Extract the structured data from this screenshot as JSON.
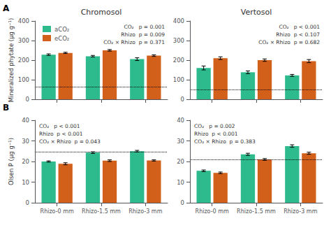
{
  "chart_data": [
    {
      "type": "bar",
      "title": "Chromosol",
      "panel_label": "A",
      "ylabel": "Mineralized phytate (μg g⁻¹)",
      "categories": [
        null,
        null,
        null
      ],
      "series": [
        {
          "name": "aCO₂",
          "color": "#2dba8c",
          "values": [
            228,
            220,
            205
          ],
          "errors": [
            4,
            4,
            7
          ]
        },
        {
          "name": "eCO₂",
          "color": "#d2601a",
          "values": [
            237,
            250,
            223
          ],
          "errors": [
            3,
            4,
            4
          ]
        }
      ],
      "hline": 65,
      "annotation": "CO₂   p = 0.001\nRhizo  p = 0.009\nCO₂ × Rhizo  p = 0.371",
      "ylim": [
        0,
        400
      ],
      "yticks": [
        0,
        100,
        200,
        300,
        400
      ],
      "grid": false,
      "legend": "upper left",
      "tick_labels": "y"
    },
    {
      "type": "bar",
      "title": "Vertosol",
      "categories": [
        null,
        null,
        null
      ],
      "series": [
        {
          "name": "aCO₂",
          "color": "#2dba8c",
          "values": [
            160,
            138,
            122
          ],
          "errors": [
            10,
            7,
            5
          ]
        },
        {
          "name": "eCO₂",
          "color": "#d2601a",
          "values": [
            210,
            200,
            195
          ],
          "errors": [
            7,
            6,
            8
          ]
        }
      ],
      "hline": 50,
      "annotation": "CO₂   p < 0.001\nRhizo  p < 0.107\nCO₂ × Rhizo  p = 0.682",
      "ylim": [
        0,
        400
      ],
      "yticks": [
        0,
        100,
        200,
        300,
        400
      ],
      "grid": false,
      "tick_labels": "y"
    },
    {
      "type": "bar",
      "panel_label": "B",
      "ylabel": "Olsen P (μg g⁻¹)",
      "categories": [
        "Rhizo-0 mm",
        "Rhizo-1.5 mm",
        "Rhizo-3 mm"
      ],
      "series": [
        {
          "name": "aCO₂",
          "color": "#2dba8c",
          "values": [
            20.0,
            24.3,
            25.0
          ],
          "errors": [
            0.3,
            0.4,
            0.4
          ]
        },
        {
          "name": "eCO₂",
          "color": "#d2601a",
          "values": [
            18.9,
            20.4,
            20.5
          ],
          "errors": [
            0.5,
            0.4,
            0.3
          ]
        }
      ],
      "hline": 24.5,
      "annotation": "CO₂   p < 0.001\nRhizo  p < 0.001\nCO₂ × Rhizo  p = 0.043",
      "ylim": [
        0,
        40
      ],
      "yticks": [
        0,
        10,
        20,
        30,
        40
      ],
      "grid": false
    },
    {
      "type": "bar",
      "categories": [
        "Rhizo-0 mm",
        "Rhizo-1.5 mm",
        "Rhizo-3 mm"
      ],
      "series": [
        {
          "name": "aCO₂",
          "color": "#2dba8c",
          "values": [
            15.5,
            23.5,
            27.5
          ],
          "errors": [
            0.4,
            0.5,
            0.6
          ]
        },
        {
          "name": "eCO₂",
          "color": "#d2601a",
          "values": [
            14.5,
            21.0,
            24.0
          ],
          "errors": [
            0.4,
            0.4,
            0.5
          ]
        }
      ],
      "hline": 21.0,
      "annotation": "CO₂   p = 0.002\nRhizo  p < 0.001\nCO₂ × Rhizo  p = 0.383",
      "ylim": [
        0,
        40
      ],
      "yticks": [
        0,
        10,
        20,
        30,
        40
      ],
      "grid": false
    }
  ]
}
